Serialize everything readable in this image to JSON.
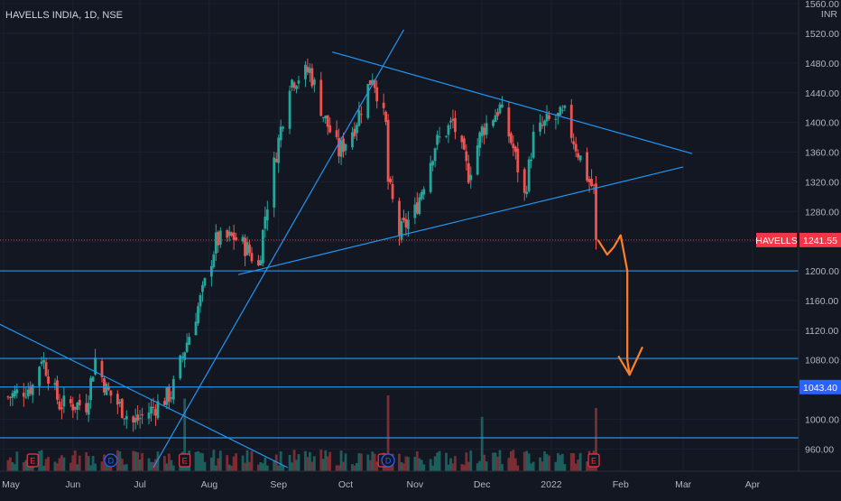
{
  "header": {
    "symbol": "HAVELLS INDIA, 1D, NSE"
  },
  "price_axis": {
    "currency": "INR",
    "ticks": [
      960,
      1000,
      1040,
      1080,
      1120,
      1160,
      1200,
      1240,
      1280,
      1320,
      1360,
      1400,
      1440,
      1480,
      1520,
      1560
    ]
  },
  "time_axis": {
    "labels": [
      {
        "label": "May",
        "date": "2021-05-01"
      },
      {
        "label": "Jun",
        "date": "2021-06-01"
      },
      {
        "label": "Jul",
        "date": "2021-07-01"
      },
      {
        "label": "Aug",
        "date": "2021-08-01"
      },
      {
        "label": "Sep",
        "date": "2021-09-01"
      },
      {
        "label": "Oct",
        "date": "2021-10-01"
      },
      {
        "label": "Nov",
        "date": "2021-11-01"
      },
      {
        "label": "Dec",
        "date": "2021-12-01"
      },
      {
        "label": "2022",
        "date": "2022-01-01"
      },
      {
        "label": "Feb",
        "date": "2022-02-01"
      },
      {
        "label": "Mar",
        "date": "2022-03-01"
      },
      {
        "label": "Apr",
        "date": "2022-04-01"
      }
    ]
  },
  "price_tags": [
    {
      "label": "HAVELLS",
      "value": "1241.55",
      "price": 1241.55,
      "color": "#f23645"
    },
    {
      "label": "",
      "value": "1043.40",
      "price": 1043.4,
      "color": "#2962ff"
    }
  ],
  "event_markers": [
    {
      "type": "E",
      "date": "2021-05-14"
    },
    {
      "type": "D",
      "date": "2021-06-18"
    },
    {
      "type": "E",
      "date": "2021-07-21"
    },
    {
      "type": "E",
      "date": "2021-10-18"
    },
    {
      "type": "D",
      "date": "2021-10-20"
    },
    {
      "type": "E",
      "date": "2022-01-20"
    }
  ],
  "colors": {
    "background": "#131722",
    "up": "#26a69a",
    "down": "#ef5350",
    "up_volume": "#1d5e5c",
    "down_volume": "#7a2e34",
    "trendline": "#2196f3",
    "annotation": "#ff7f27",
    "grid": "#1c2030"
  },
  "chart_data": {
    "type": "candlestick",
    "title": "HAVELLS INDIA, 1D, NSE",
    "y_unit": "INR",
    "ylim": [
      930,
      1565
    ],
    "xlim": [
      "2021-05-01",
      "2022-04-20"
    ],
    "last_price": 1241.55,
    "anchor_prices": [
      {
        "date": "2021-05-03",
        "price": 1030
      },
      {
        "date": "2021-05-14",
        "price": 1045
      },
      {
        "date": "2021-05-18",
        "price": 1085
      },
      {
        "date": "2021-05-26",
        "price": 1020
      },
      {
        "date": "2021-06-07",
        "price": 1020
      },
      {
        "date": "2021-06-11",
        "price": 1082
      },
      {
        "date": "2021-06-16",
        "price": 1040
      },
      {
        "date": "2021-06-28",
        "price": 995
      },
      {
        "date": "2021-07-07",
        "price": 1015
      },
      {
        "date": "2021-07-15",
        "price": 1035
      },
      {
        "date": "2021-07-21",
        "price": 1095
      },
      {
        "date": "2021-07-29",
        "price": 1170
      },
      {
        "date": "2021-08-04",
        "price": 1240
      },
      {
        "date": "2021-08-12",
        "price": 1245
      },
      {
        "date": "2021-08-18",
        "price": 1230
      },
      {
        "date": "2021-08-23",
        "price": 1205
      },
      {
        "date": "2021-08-26",
        "price": 1275
      },
      {
        "date": "2021-08-31",
        "price": 1360
      },
      {
        "date": "2021-09-06",
        "price": 1455
      },
      {
        "date": "2021-09-15",
        "price": 1470
      },
      {
        "date": "2021-09-21",
        "price": 1410
      },
      {
        "date": "2021-09-28",
        "price": 1360
      },
      {
        "date": "2021-10-05",
        "price": 1395
      },
      {
        "date": "2021-10-13",
        "price": 1465
      },
      {
        "date": "2021-10-19",
        "price": 1395
      },
      {
        "date": "2021-10-20",
        "price": 1320
      },
      {
        "date": "2021-10-25",
        "price": 1250
      },
      {
        "date": "2021-11-01",
        "price": 1280
      },
      {
        "date": "2021-11-10",
        "price": 1370
      },
      {
        "date": "2021-11-18",
        "price": 1400
      },
      {
        "date": "2021-11-25",
        "price": 1330
      },
      {
        "date": "2021-12-01",
        "price": 1390
      },
      {
        "date": "2021-12-09",
        "price": 1420
      },
      {
        "date": "2021-12-15",
        "price": 1365
      },
      {
        "date": "2021-12-20",
        "price": 1300
      },
      {
        "date": "2021-12-24",
        "price": 1380
      },
      {
        "date": "2021-12-30",
        "price": 1400
      },
      {
        "date": "2022-01-07",
        "price": 1410
      },
      {
        "date": "2022-01-13",
        "price": 1360
      },
      {
        "date": "2022-01-18",
        "price": 1320
      },
      {
        "date": "2022-01-20",
        "price": 1310
      },
      {
        "date": "2022-01-21",
        "price": 1241.55
      }
    ],
    "horizontal_levels": [
      1200,
      1082,
      1043.4,
      975
    ],
    "volume_spikes": [
      "2021-07-21",
      "2021-10-20",
      "2021-12-01",
      "2022-01-21"
    ]
  }
}
